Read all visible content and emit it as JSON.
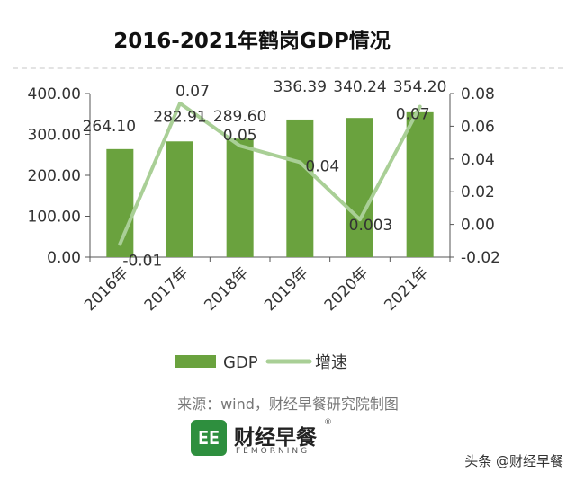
{
  "header": {
    "title": "2016-2021年鹤岗GDP情况"
  },
  "chart_data": {
    "type": "bar",
    "categories": [
      "2016年",
      "2017年",
      "2018年",
      "2019年",
      "2020年",
      "2021年"
    ],
    "series": [
      {
        "name": "GDP",
        "type": "bar",
        "axis": "left",
        "values": [
          264.1,
          282.91,
          289.6,
          336.39,
          340.24,
          354.2
        ],
        "labels": [
          "264.10",
          "282.91",
          "289.60",
          "336.39",
          "340.24",
          "354.20"
        ],
        "color": "#6aa23e"
      },
      {
        "name": "增速",
        "type": "line",
        "axis": "right",
        "values": [
          -0.012,
          0.074,
          0.048,
          0.038,
          0.003,
          0.072
        ],
        "labels": [
          "-0.01",
          "0.07",
          "0.05",
          "0.04",
          "0.003",
          "0.07"
        ],
        "color": "#a9cf96"
      }
    ],
    "y_left": {
      "min": 0,
      "max": 400,
      "ticks": [
        "0.00",
        "100.00",
        "200.00",
        "300.00",
        "400.00"
      ]
    },
    "y_right": {
      "min": -0.02,
      "max": 0.08,
      "ticks": [
        "-0.02",
        "0.00",
        "0.02",
        "0.04",
        "0.06",
        "0.08"
      ]
    },
    "grid": false,
    "legend_position": "bottom"
  },
  "footer": {
    "source": "来源：wind，财经早餐研究院制图",
    "brand_logo": "EE",
    "brand_name": "财经早餐",
    "brand_sub": "FEMORNING",
    "brand_reg": "®",
    "watermark": "头条 @财经早餐"
  }
}
